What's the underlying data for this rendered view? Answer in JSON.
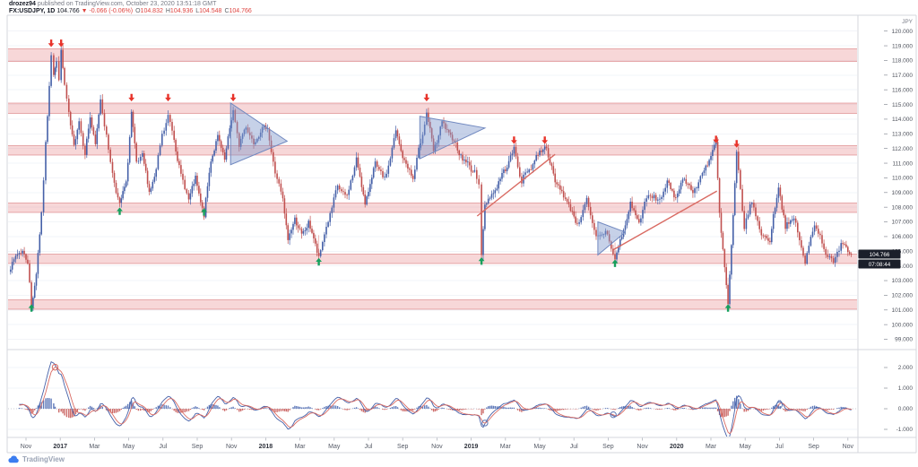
{
  "header": {
    "publisher": "drozez94",
    "published_info": "published on TradingView.com, October 23, 2020 13:51:18 GMT",
    "symbol": "FX:USDJPY, 1D",
    "price": "104.766",
    "change": "▼ -0.066 (-0.06%)",
    "ohlc": {
      "o_label": "O",
      "o": "104.832",
      "h_label": "H",
      "h": "104.936",
      "l_label": "L",
      "l": "104.548",
      "c_label": "C",
      "c": "104.766"
    }
  },
  "attribution": {
    "name": "TradingView"
  },
  "colors": {
    "candle_up": "#4560a8",
    "candle_down": "#c0504f",
    "zone_fill": "rgba(226,110,114,0.28)",
    "zone_edge": "rgba(203,84,89,0.45)",
    "sell_arrow": "#e8332a",
    "buy_arrow": "#16a05d",
    "pennant_fill": "rgba(129,153,204,0.45)",
    "pennant_edge": "#7189c0",
    "trend_line": "#d96a62",
    "connector": "rgba(217,106,98,0.55)",
    "macd_line": "#4560a8",
    "signal_line": "#d96a62",
    "hist_up": "#4f6cb3",
    "hist_down": "#c75a58",
    "tag_bg": "#1b1f2a",
    "tag_text": "#ffffff",
    "axis_text": "#50545e",
    "year_text": "#2e323c",
    "muted_text": "#787b86",
    "grid": "#f2f4f8",
    "zero_line": "#c9cdd7",
    "frame": "#d4d7de"
  },
  "chart_data": [
    {
      "type": "candlestick",
      "symbol": "FX:USDJPY",
      "timeframe": "1D",
      "currency_label": "JPY",
      "last_price": "104.766",
      "countdown": "07:08:44",
      "x_unit": "months since 2016-11-01",
      "price_axis_labels": [
        "120.000",
        "119.000",
        "118.000",
        "117.000",
        "116.000",
        "115.000",
        "114.000",
        "113.000",
        "112.000",
        "111.000",
        "110.000",
        "109.000",
        "108.000",
        "107.000",
        "106.000",
        "105.000",
        "104.000",
        "103.000",
        "102.000",
        "101.000",
        "100.000",
        "99.000"
      ],
      "time_axis_labels": [
        "Nov",
        "2017",
        "Mar",
        "May",
        "Jul",
        "Sep",
        "Nov",
        "2018",
        "Mar",
        "May",
        "Jul",
        "Sep",
        "Nov",
        "2019",
        "Mar",
        "May",
        "Jul",
        "Sep",
        "Nov",
        "2020",
        "Mar",
        "May",
        "Jul",
        "Sep",
        "Nov"
      ],
      "price_range": {
        "min": 98.3,
        "max": 121.08
      },
      "series_anchors": [
        [
          -1.0,
          103.8
        ],
        [
          -0.6,
          104.6
        ],
        [
          -0.2,
          105.1
        ],
        [
          0.1,
          104.2
        ],
        [
          0.32,
          101.2
        ],
        [
          0.6,
          103.6
        ],
        [
          0.9,
          107.4
        ],
        [
          1.15,
          112.4
        ],
        [
          1.47,
          118.4
        ],
        [
          1.62,
          117.0
        ],
        [
          1.78,
          117.9
        ],
        [
          1.92,
          116.9
        ],
        [
          2.05,
          118.6
        ],
        [
          2.25,
          116.2
        ],
        [
          2.5,
          114.4
        ],
        [
          2.8,
          112.1
        ],
        [
          3.1,
          113.9
        ],
        [
          3.45,
          111.7
        ],
        [
          3.75,
          114.1
        ],
        [
          4.05,
          112.3
        ],
        [
          4.35,
          115.3
        ],
        [
          4.7,
          112.9
        ],
        [
          5.05,
          110.2
        ],
        [
          5.47,
          108.2
        ],
        [
          5.85,
          109.6
        ],
        [
          6.16,
          114.5
        ],
        [
          6.45,
          110.9
        ],
        [
          6.8,
          111.6
        ],
        [
          7.2,
          109.0
        ],
        [
          7.6,
          110.5
        ],
        [
          7.95,
          112.9
        ],
        [
          8.3,
          114.2
        ],
        [
          8.65,
          112.7
        ],
        [
          9.05,
          110.1
        ],
        [
          9.5,
          108.6
        ],
        [
          9.9,
          109.9
        ],
        [
          10.4,
          107.4
        ],
        [
          10.8,
          111.3
        ],
        [
          11.2,
          112.7
        ],
        [
          11.6,
          111.3
        ],
        [
          12.1,
          114.6
        ],
        [
          12.45,
          112.2
        ],
        [
          12.85,
          113.6
        ],
        [
          13.3,
          112.3
        ],
        [
          13.7,
          113.3
        ],
        [
          14.1,
          113.4
        ],
        [
          14.55,
          110.3
        ],
        [
          15.0,
          108.6
        ],
        [
          15.3,
          105.7
        ],
        [
          15.7,
          107.3
        ],
        [
          16.1,
          106.0
        ],
        [
          16.5,
          107.0
        ],
        [
          17.1,
          104.6
        ],
        [
          17.65,
          107.1
        ],
        [
          18.2,
          109.4
        ],
        [
          18.75,
          108.7
        ],
        [
          19.3,
          111.3
        ],
        [
          19.8,
          108.2
        ],
        [
          20.4,
          111.0
        ],
        [
          20.95,
          109.8
        ],
        [
          21.6,
          113.1
        ],
        [
          22.1,
          111.1
        ],
        [
          22.6,
          110.0
        ],
        [
          23.05,
          112.4
        ],
        [
          23.4,
          114.5
        ],
        [
          23.8,
          111.8
        ],
        [
          24.3,
          113.7
        ],
        [
          24.9,
          112.7
        ],
        [
          25.5,
          111.3
        ],
        [
          26.2,
          110.4
        ],
        [
          26.45,
          109.6
        ],
        [
          26.6,
          104.8
        ],
        [
          26.8,
          108.2
        ],
        [
          27.3,
          109.0
        ],
        [
          27.9,
          110.4
        ],
        [
          28.5,
          111.9
        ],
        [
          28.95,
          109.8
        ],
        [
          29.6,
          111.0
        ],
        [
          30.3,
          112.3
        ],
        [
          30.9,
          109.8
        ],
        [
          31.6,
          108.4
        ],
        [
          32.2,
          106.8
        ],
        [
          32.75,
          108.5
        ],
        [
          33.3,
          105.8
        ],
        [
          33.85,
          106.4
        ],
        [
          34.4,
          104.5
        ],
        [
          34.9,
          106.4
        ],
        [
          35.3,
          108.2
        ],
        [
          35.8,
          107.0
        ],
        [
          36.35,
          108.9
        ],
        [
          36.9,
          108.4
        ],
        [
          37.45,
          109.6
        ],
        [
          37.95,
          108.7
        ],
        [
          38.45,
          110.1
        ],
        [
          38.95,
          108.9
        ],
        [
          39.5,
          110.3
        ],
        [
          40.3,
          112.3
        ],
        [
          40.5,
          107.6
        ],
        [
          41.0,
          101.3
        ],
        [
          41.5,
          111.6
        ],
        [
          41.95,
          106.7
        ],
        [
          42.4,
          108.4
        ],
        [
          42.95,
          106.1
        ],
        [
          43.45,
          105.8
        ],
        [
          43.95,
          109.5
        ],
        [
          44.35,
          106.6
        ],
        [
          44.85,
          107.3
        ],
        [
          45.5,
          104.2
        ],
        [
          46.05,
          107.0
        ],
        [
          46.6,
          105.2
        ],
        [
          47.15,
          104.1
        ],
        [
          47.6,
          105.7
        ],
        [
          48.2,
          104.77
        ]
      ],
      "zones": [
        [
          118.8,
          117.95
        ],
        [
          115.1,
          114.4
        ],
        [
          112.2,
          111.55
        ],
        [
          108.3,
          107.65
        ],
        [
          104.8,
          104.15
        ],
        [
          101.7,
          101.05
        ]
      ],
      "sell_arrows": [
        [
          1.47,
          118.85
        ],
        [
          2.05,
          118.85
        ],
        [
          6.16,
          115.15
        ],
        [
          8.3,
          115.15
        ],
        [
          12.1,
          115.15
        ],
        [
          23.4,
          115.15
        ],
        [
          28.5,
          112.25
        ],
        [
          30.3,
          112.25
        ],
        [
          40.3,
          112.3
        ],
        [
          41.5,
          112.0
        ]
      ],
      "buy_arrows": [
        [
          0.32,
          101.45
        ],
        [
          5.47,
          108.05
        ],
        [
          10.4,
          108.0
        ],
        [
          17.1,
          104.6
        ],
        [
          26.6,
          104.65
        ],
        [
          34.4,
          104.5
        ],
        [
          41.0,
          101.45
        ]
      ],
      "pennants": [
        [
          [
            11.95,
            115.1
          ],
          [
            11.95,
            110.9
          ],
          [
            15.25,
            112.5
          ]
        ],
        [
          [
            23.0,
            114.2
          ],
          [
            23.0,
            111.3
          ],
          [
            26.8,
            113.4
          ]
        ],
        [
          [
            33.4,
            107.0
          ],
          [
            33.4,
            104.75
          ],
          [
            35.0,
            106.3
          ]
        ]
      ],
      "trendlines": [
        [
          [
            26.35,
            107.4
          ],
          [
            30.9,
            111.6
          ]
        ],
        [
          [
            34.3,
            105.1
          ],
          [
            40.35,
            109.1
          ]
        ]
      ],
      "connectors": [
        [
          17.1,
          106.1,
          104.75
        ],
        [
          26.6,
          107.9,
          104.8
        ],
        [
          34.4,
          105.6,
          104.6
        ],
        [
          41.0,
          103.2,
          101.6
        ]
      ]
    },
    {
      "type": "macd",
      "source": "derived from price series (12,26,9 EMA equivalent)",
      "axis_labels": [
        "2.000",
        "1.000",
        "0.000",
        "-1.000"
      ],
      "axis_values": [
        2,
        1,
        0,
        -1
      ],
      "peak_value": 2.28,
      "marker_months": [
        1.7,
        26.8,
        34.3,
        44.0
      ],
      "marker_colors": [
        "#d96a62",
        "#5c77b5",
        "#5c77b5",
        "#5c77b5"
      ]
    }
  ]
}
